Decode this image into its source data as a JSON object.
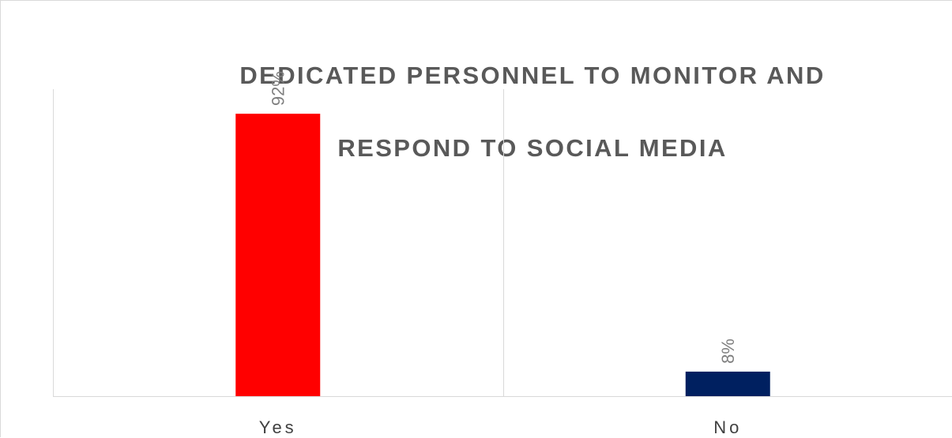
{
  "chart_data": {
    "type": "bar",
    "title_lines": [
      "DEDICATED PERSONNEL TO MONITOR AND",
      "RESPOND TO SOCIAL MEDIA"
    ],
    "categories": [
      "Yes",
      "No"
    ],
    "values": [
      92,
      8
    ],
    "value_labels": [
      "92%",
      "8%"
    ],
    "value_unit": "%",
    "ylim": [
      0,
      100
    ],
    "grid": "vertical-category-dividers",
    "legend": "none",
    "colors": [
      "#FF0000",
      "#002060"
    ],
    "axis_color": "#d9d9d9",
    "label_color": "#7f7f7f"
  }
}
